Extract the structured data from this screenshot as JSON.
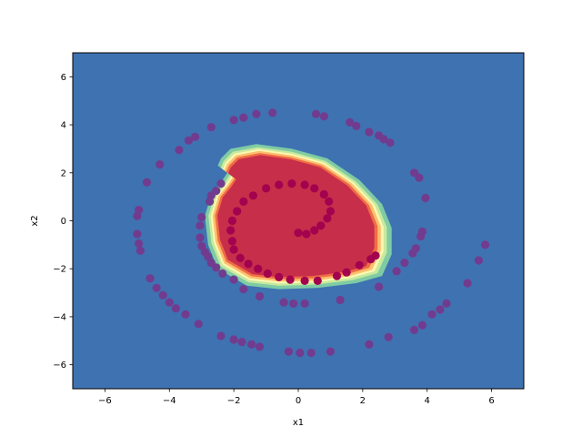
{
  "chart_data": {
    "type": "scatter",
    "title": "",
    "xlabel": "x1",
    "ylabel": "x2",
    "xlim": [
      -7,
      7
    ],
    "ylim": [
      -7,
      7
    ],
    "x_ticks": [
      -6,
      -4,
      -2,
      0,
      2,
      4,
      6
    ],
    "y_ticks": [
      -6,
      -4,
      -2,
      0,
      2,
      4,
      6
    ],
    "x_tick_labels": [
      "−6",
      "−4",
      "−2",
      "0",
      "2",
      "4",
      "6"
    ],
    "y_tick_labels": [
      "−6",
      "−4",
      "−2",
      "0",
      "2",
      "4",
      "6"
    ],
    "grid": false,
    "legend": "none",
    "background_region_color": "#3f72b1",
    "decision_region": {
      "description": "filled contour of classifier output around the inner spiral",
      "level_colors": [
        "#7fcba4",
        "#c8e99e",
        "#fbf8b0",
        "#fdbe6f",
        "#ef6c45",
        "#c72e4a"
      ],
      "boundary": [
        [
          -2.4,
          2.6
        ],
        [
          -2.1,
          3.0
        ],
        [
          -1.3,
          3.2
        ],
        [
          -0.2,
          3.0
        ],
        [
          0.9,
          2.6
        ],
        [
          1.9,
          1.7
        ],
        [
          2.6,
          0.7
        ],
        [
          2.9,
          -0.3
        ],
        [
          2.9,
          -1.4
        ],
        [
          2.6,
          -2.3
        ],
        [
          1.8,
          -2.6
        ],
        [
          0.6,
          -2.8
        ],
        [
          -0.6,
          -2.85
        ],
        [
          -1.6,
          -2.7
        ],
        [
          -2.5,
          -2.0
        ],
        [
          -2.8,
          -1.0
        ],
        [
          -2.9,
          0.2
        ],
        [
          -2.7,
          1.1
        ],
        [
          -2.4,
          1.6
        ],
        [
          -2.2,
          2.0
        ],
        [
          -2.5,
          2.3
        ]
      ]
    },
    "series": [
      {
        "class": 1,
        "color": "#a3024f",
        "points": [
          [
            0.0,
            -0.5
          ],
          [
            0.25,
            -0.55
          ],
          [
            0.5,
            -0.4
          ],
          [
            0.7,
            -0.2
          ],
          [
            0.9,
            0.1
          ],
          [
            1.0,
            0.4
          ],
          [
            0.95,
            0.8
          ],
          [
            0.8,
            1.1
          ],
          [
            0.5,
            1.35
          ],
          [
            0.2,
            1.5
          ],
          [
            -0.2,
            1.55
          ],
          [
            -0.6,
            1.5
          ],
          [
            -1.0,
            1.35
          ],
          [
            -1.4,
            1.05
          ],
          [
            -1.7,
            0.8
          ],
          [
            -1.9,
            0.4
          ],
          [
            -2.05,
            0.0
          ],
          [
            -2.1,
            -0.4
          ],
          [
            -2.05,
            -0.85
          ],
          [
            -2.0,
            -1.2
          ],
          [
            -1.8,
            -1.55
          ],
          [
            -1.55,
            -1.8
          ],
          [
            -1.25,
            -2.0
          ],
          [
            -0.95,
            -2.2
          ],
          [
            -0.6,
            -2.35
          ],
          [
            -0.25,
            -2.45
          ],
          [
            0.2,
            -2.5
          ],
          [
            0.6,
            -2.5
          ],
          [
            1.2,
            -2.3
          ],
          [
            1.5,
            -2.15
          ],
          [
            1.9,
            -1.85
          ],
          [
            2.25,
            -1.6
          ],
          [
            2.4,
            -1.45
          ]
        ]
      },
      {
        "class": 0,
        "color": "#713c8f",
        "points": [
          [
            -0.8,
            4.5
          ],
          [
            -1.3,
            4.45
          ],
          [
            -1.7,
            4.3
          ],
          [
            -2.0,
            4.2
          ],
          [
            -2.7,
            3.9
          ],
          [
            -3.2,
            3.5
          ],
          [
            -3.4,
            3.35
          ],
          [
            -3.7,
            2.95
          ],
          [
            -4.3,
            2.35
          ],
          [
            -4.7,
            1.6
          ],
          [
            -4.95,
            0.45
          ],
          [
            -5.0,
            0.2
          ],
          [
            -5.0,
            -0.55
          ],
          [
            -4.95,
            -0.95
          ],
          [
            -4.9,
            -1.25
          ],
          [
            -4.6,
            -2.4
          ],
          [
            -4.4,
            -2.8
          ],
          [
            -4.2,
            -3.1
          ],
          [
            -4.0,
            -3.4
          ],
          [
            -3.8,
            -3.65
          ],
          [
            -3.5,
            -3.9
          ],
          [
            -3.1,
            -4.3
          ],
          [
            -2.4,
            -4.8
          ],
          [
            -2.0,
            -4.95
          ],
          [
            -1.75,
            -5.05
          ],
          [
            -1.45,
            -5.15
          ],
          [
            -1.2,
            -5.25
          ],
          [
            -0.3,
            -5.45
          ],
          [
            0.05,
            -5.5
          ],
          [
            0.4,
            -5.5
          ],
          [
            1.0,
            -5.45
          ],
          [
            2.2,
            -5.15
          ],
          [
            2.8,
            -4.85
          ],
          [
            3.6,
            -4.55
          ],
          [
            3.85,
            -4.35
          ],
          [
            4.15,
            -3.9
          ],
          [
            4.4,
            -3.7
          ],
          [
            4.6,
            -3.45
          ],
          [
            5.25,
            -2.6
          ],
          [
            5.6,
            -1.65
          ],
          [
            5.8,
            -1.0
          ],
          [
            0.55,
            4.45
          ],
          [
            0.8,
            4.35
          ],
          [
            1.6,
            4.1
          ],
          [
            1.8,
            3.95
          ],
          [
            2.2,
            3.7
          ],
          [
            2.5,
            3.55
          ],
          [
            2.65,
            3.4
          ],
          [
            2.85,
            3.25
          ],
          [
            3.6,
            2.0
          ],
          [
            3.75,
            1.8
          ],
          [
            3.95,
            0.95
          ],
          [
            3.85,
            -0.45
          ],
          [
            3.8,
            -0.65
          ],
          [
            3.65,
            -1.15
          ],
          [
            3.55,
            -1.35
          ],
          [
            3.3,
            -1.75
          ],
          [
            3.05,
            -2.1
          ],
          [
            2.5,
            -2.75
          ],
          [
            1.3,
            -3.3
          ],
          [
            0.2,
            -3.45
          ],
          [
            -0.15,
            -3.45
          ],
          [
            -0.45,
            -3.4
          ],
          [
            -1.2,
            -3.15
          ],
          [
            -1.7,
            -2.85
          ],
          [
            -2.0,
            -2.45
          ],
          [
            -2.35,
            -2.2
          ],
          [
            -2.55,
            -1.95
          ],
          [
            -2.7,
            -1.75
          ],
          [
            -2.8,
            -1.5
          ],
          [
            -2.9,
            -1.3
          ],
          [
            -3.0,
            -1.05
          ],
          [
            -3.05,
            -0.7
          ],
          [
            -3.05,
            -0.2
          ],
          [
            -3.0,
            0.15
          ],
          [
            -2.75,
            0.8
          ],
          [
            -2.7,
            1.05
          ],
          [
            -2.55,
            1.25
          ],
          [
            -2.4,
            1.55
          ]
        ]
      }
    ]
  }
}
